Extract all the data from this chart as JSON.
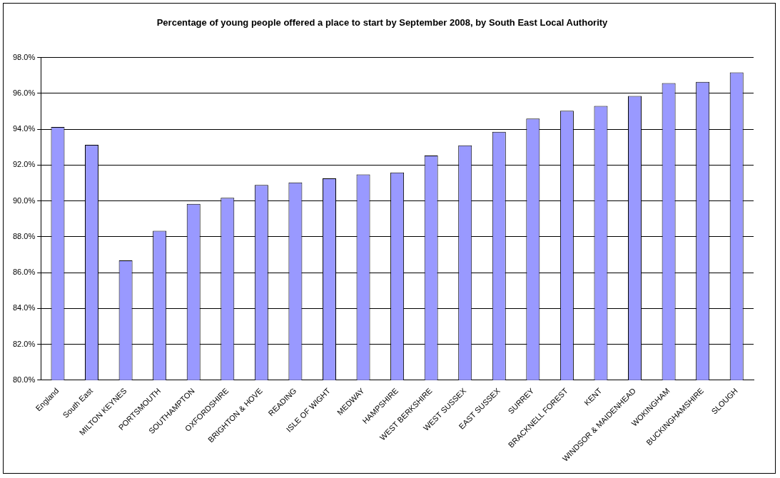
{
  "chart_data": {
    "type": "bar",
    "title": "Percentage of young people offered a place to start by September 2008, by South East Local Authority",
    "categories": [
      "England",
      "South East",
      "MILTON KEYNES",
      "PORTSMOUTH",
      "SOUTHAMPTON",
      "OXFORDSHIRE",
      "BRIGHTON & HOVE",
      "READING",
      "ISLE OF WIGHT",
      "MEDWAY",
      "HAMPSHIRE",
      "WEST BERKSHIRE",
      "WEST SUSSEX",
      "EAST SUSSEX",
      "SURREY",
      "BRACKNELL FOREST",
      "KENT",
      "WINDSOR & MAIDENHEAD",
      "WOKINGHAM",
      "BUCKINGHAMSHIRE",
      "SLOUGH"
    ],
    "values": [
      94.12,
      93.13,
      86.68,
      88.33,
      89.83,
      90.17,
      90.89,
      91.03,
      91.26,
      91.47,
      91.58,
      92.53,
      93.1,
      93.85,
      94.59,
      95.03,
      95.3,
      95.85,
      96.57,
      96.64,
      97.17
    ],
    "color": "#9999ff",
    "ylim": [
      80,
      98
    ],
    "yticks": [
      {
        "value": 80,
        "label": "80.0%"
      },
      {
        "value": 82,
        "label": "82.0%"
      },
      {
        "value": 84,
        "label": "84.0%"
      },
      {
        "value": 86,
        "label": "86.0%"
      },
      {
        "value": 88,
        "label": "88.0%"
      },
      {
        "value": 90,
        "label": "90.0%"
      },
      {
        "value": 92,
        "label": "92.0%"
      },
      {
        "value": 94,
        "label": "94.0%"
      },
      {
        "value": 96,
        "label": "96.0%"
      },
      {
        "value": 98,
        "label": "98.0%"
      }
    ],
    "grid": "y"
  }
}
